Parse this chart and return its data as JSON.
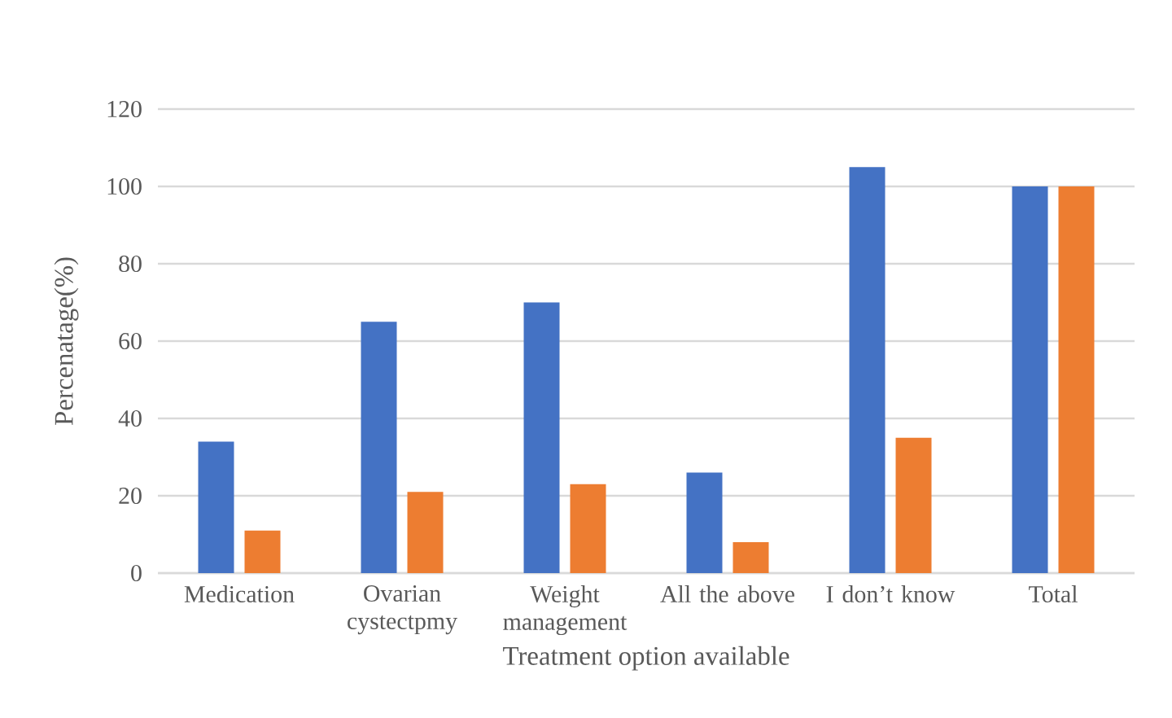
{
  "chart_data": {
    "type": "bar",
    "xlabel": "Treatment option available",
    "ylabel": "Percenatage(%)",
    "categories": [
      "Medication",
      "Ovarian cystectpmy",
      "Weight management",
      "All the above",
      "I don’t know",
      "Total"
    ],
    "series": [
      {
        "color": "#4472c4",
        "values": [
          34,
          65,
          70,
          26,
          105,
          100
        ]
      },
      {
        "color": "#ed7d31",
        "values": [
          11,
          21,
          23,
          8,
          35,
          100
        ]
      }
    ],
    "ylim": [
      0,
      120
    ],
    "yticks": [
      0,
      20,
      40,
      60,
      80,
      100,
      120
    ],
    "grid": "y"
  }
}
